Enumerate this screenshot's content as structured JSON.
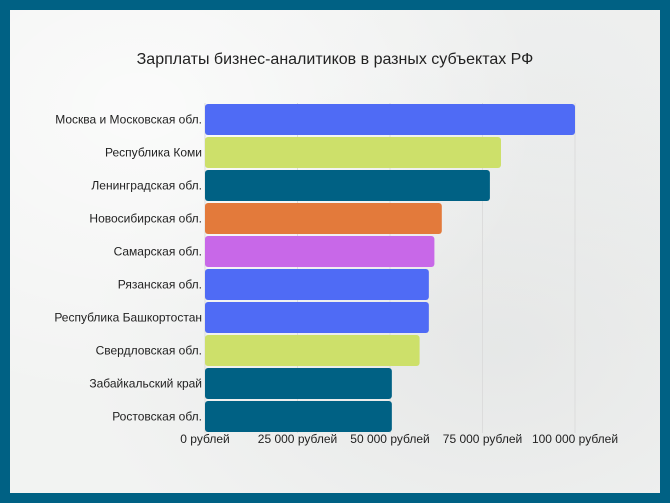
{
  "chart_data": {
    "type": "bar",
    "orientation": "horizontal",
    "title": "Зарплаты бизнес-аналитиков в разных субъектах РФ",
    "xlabel": "",
    "ylabel": "",
    "categories": [
      "Москва и Московская обл.",
      "Республика Коми",
      "Ленинградская обл.",
      "Новосибирская обл.",
      "Самарская обл.",
      "Рязанская обл.",
      "Республика Башкортостан",
      "Свердловская обл.",
      "Забайкальский край",
      "Ростовская обл."
    ],
    "values": [
      100000,
      80000,
      77000,
      64000,
      62000,
      60500,
      60500,
      58000,
      50500,
      50500
    ],
    "bar_colors": [
      "#4f6bf5",
      "#cde06a",
      "#006184",
      "#e37a3b",
      "#c868e8",
      "#4f6bf5",
      "#4f6bf5",
      "#cde06a",
      "#006184",
      "#006184"
    ],
    "xlim": [
      0,
      100000
    ],
    "x_ticks": [
      0,
      25000,
      50000,
      75000,
      100000
    ],
    "x_tick_labels": [
      "0 рублей",
      "25 000 рублей",
      "50 000 рублей",
      "75 000 рублей",
      "100 000 рублей"
    ],
    "grid": true,
    "legend": "none"
  },
  "colors": {
    "border": "#006184",
    "background": "#f2f3f2",
    "gridline": "#dcdcdc"
  }
}
